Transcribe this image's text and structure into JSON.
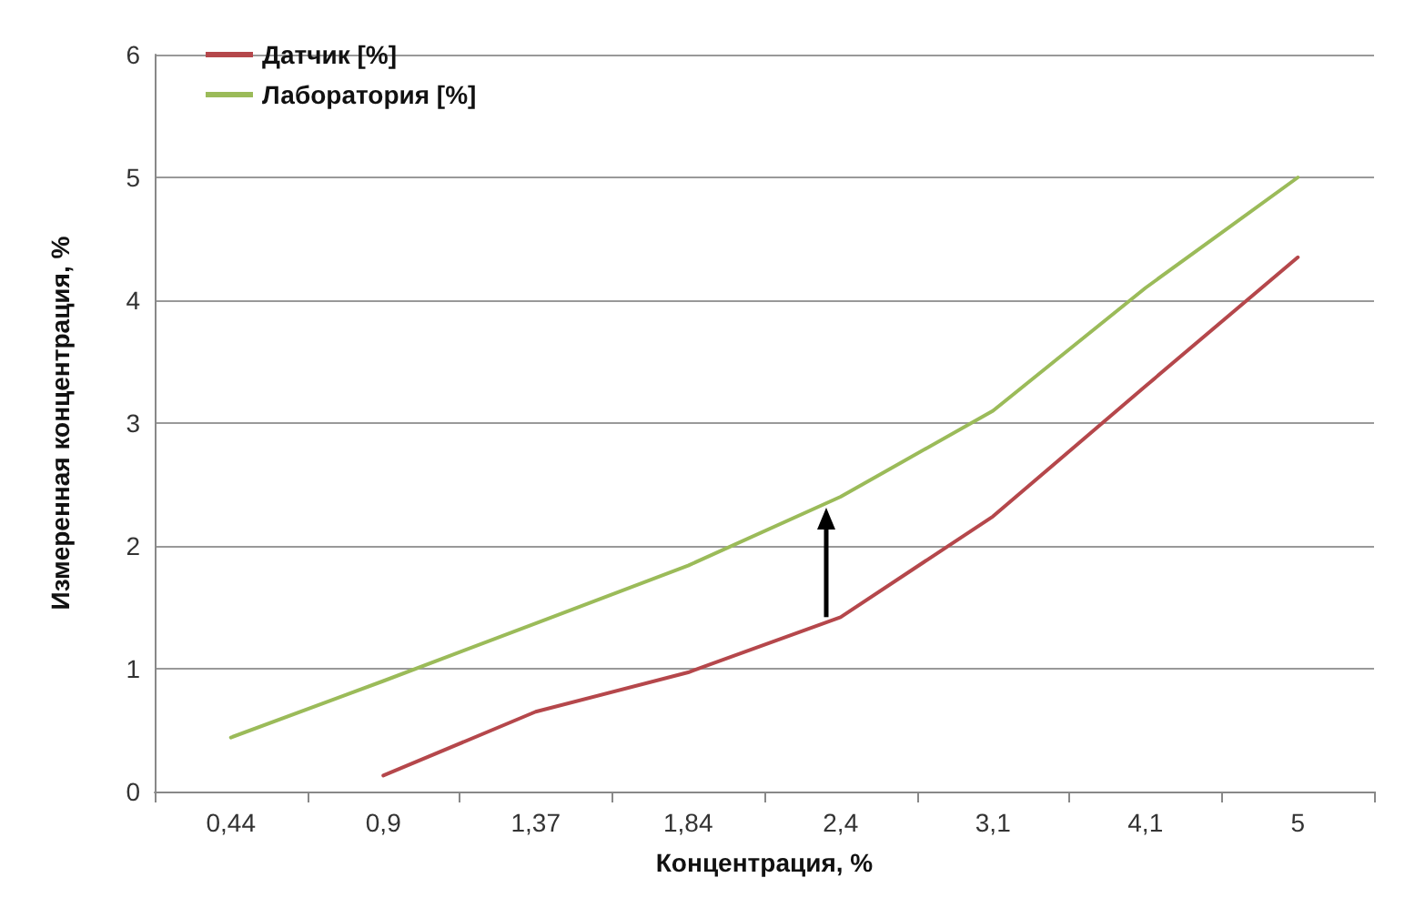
{
  "chart_data": {
    "type": "line",
    "xlabel": "Концентрация, %",
    "ylabel": "Измеренная концентрация, %",
    "categories": [
      "0,44",
      "0,9",
      "1,37",
      "1,84",
      "2,4",
      "3,1",
      "4,1",
      "5"
    ],
    "series": [
      {
        "name": "Датчик [%]",
        "color": "#b5474b",
        "values": [
          null,
          0.13,
          0.65,
          0.97,
          1.42,
          2.24,
          3.3,
          4.35
        ]
      },
      {
        "name": "Лаборатория [%]",
        "color": "#9bbb59",
        "values": [
          0.44,
          0.9,
          1.37,
          1.84,
          2.4,
          3.1,
          4.1,
          5.0
        ]
      }
    ],
    "ylim": [
      0,
      6
    ],
    "yticks": [
      0,
      1,
      2,
      3,
      4,
      5,
      6
    ],
    "grid": "y",
    "legend": "top left",
    "marker": "none",
    "line_style": "solid"
  }
}
